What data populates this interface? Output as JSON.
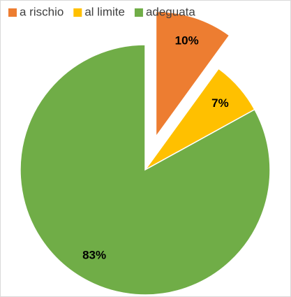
{
  "chart_data": {
    "type": "pie",
    "categories": [
      "a rischio",
      "al limite",
      "adeguata"
    ],
    "values": [
      10,
      7,
      83
    ],
    "value_labels": [
      "10%",
      "7%",
      "83%"
    ],
    "colors": [
      "#ed7d31",
      "#ffc000",
      "#70ad47"
    ],
    "exploded": [
      true,
      false,
      false
    ],
    "legend": "top"
  }
}
